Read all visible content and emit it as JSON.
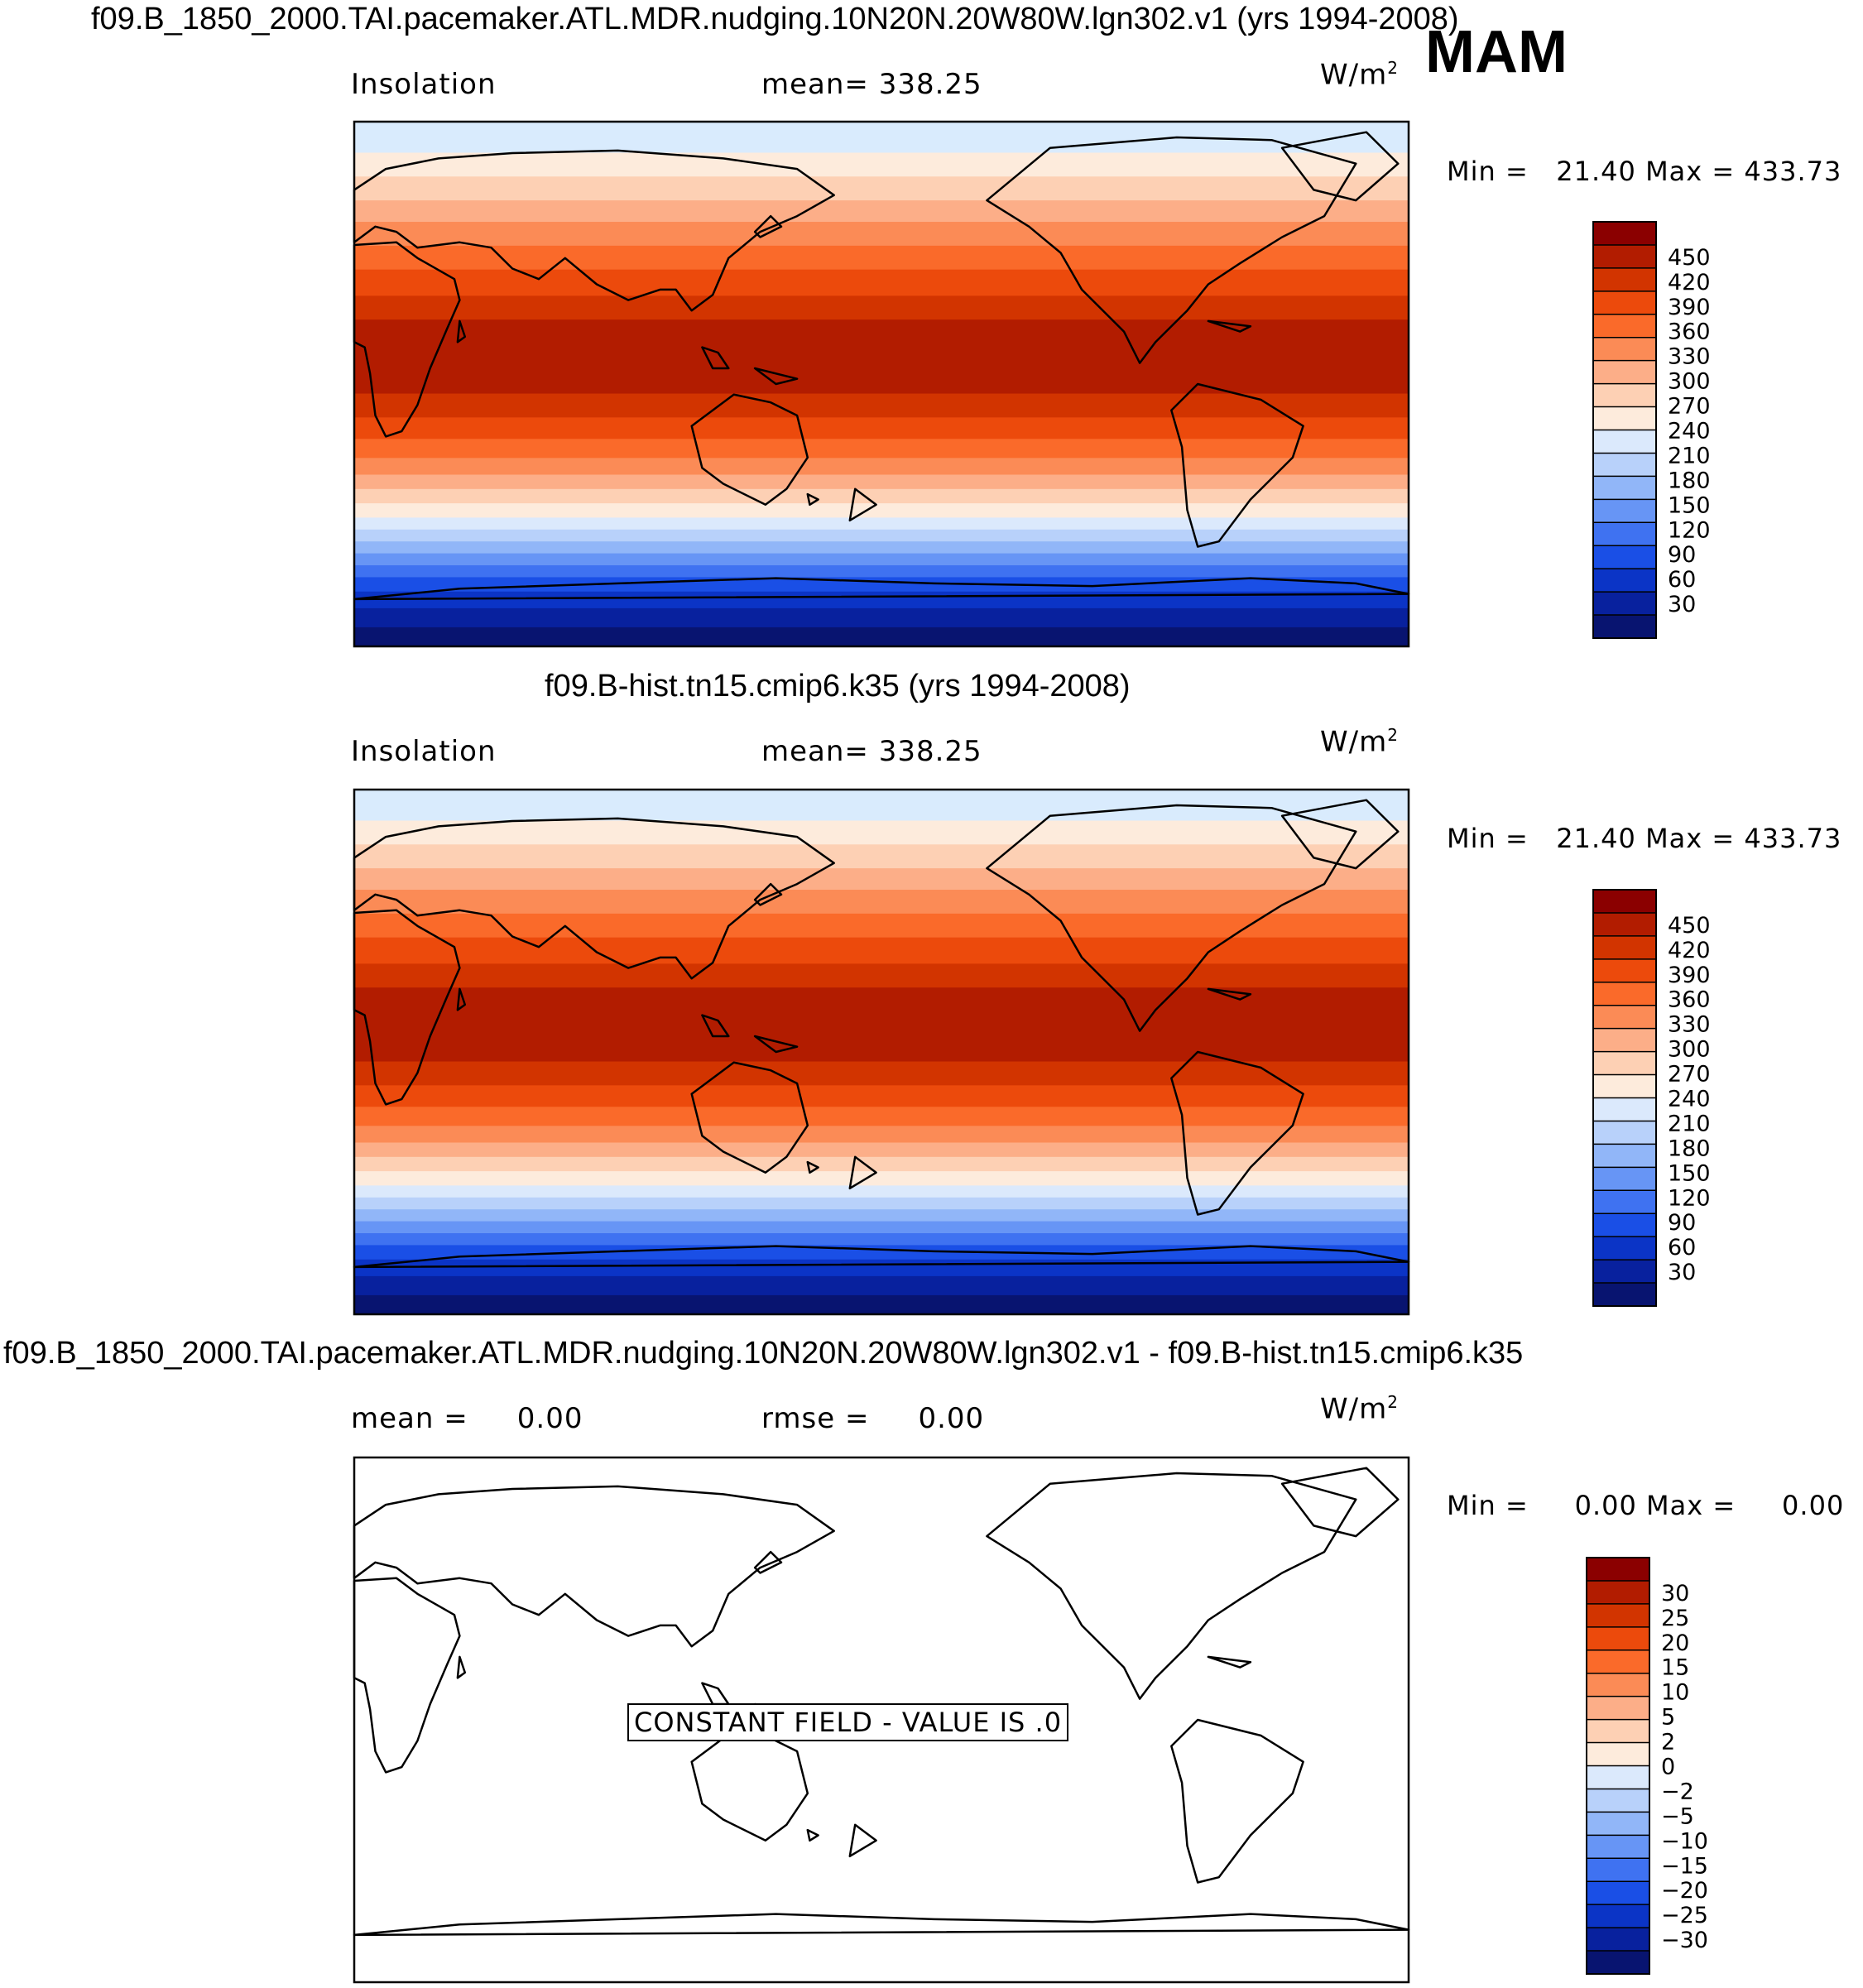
{
  "season": "MAM",
  "panels": [
    {
      "title": "f09.B_1850_2000.TAI.pacemaker.ATL.MDR.nudging.10N20N.20W80W.lgn302.v1 (yrs 1994-2008)",
      "left_label": "Insolation",
      "center_label": "mean= 338.25",
      "units": "W/m",
      "units_sup": "2",
      "min_label": "Min =",
      "min_value": "21.40",
      "max_label": "Max =",
      "max_value": "433.73",
      "colorbar": {
        "ticks": [
          "450",
          "420",
          "390",
          "360",
          "330",
          "300",
          "270",
          "240",
          "210",
          "180",
          "150",
          "120",
          "90",
          "60",
          "30"
        ],
        "colors_top_to_bottom": [
          "#8b0000",
          "#b21c00",
          "#d23400",
          "#ec4a0c",
          "#fa6a2a",
          "#fb8b56",
          "#fcae88",
          "#fdd0b4",
          "#fdebdc",
          "#dbe9fc",
          "#b8d1fa",
          "#91b6f8",
          "#6795f5",
          "#3f72f1",
          "#1a4fe6",
          "#0b34c6",
          "#08219e",
          "#081470"
        ]
      },
      "map": {
        "field": "Insolation",
        "band_colors_north_to_south": [
          "#d9ebfd",
          "#fdebdc",
          "#fdd0b4",
          "#fcae88",
          "#fb8b56",
          "#fa6a2a",
          "#ec4a0c",
          "#d23400",
          "#b21c00",
          "#b21c00",
          "#d23400",
          "#ec4a0c",
          "#fa6a2a",
          "#fb8b56",
          "#fcae88",
          "#fdd0b4",
          "#fdebdc",
          "#dbe9fc",
          "#b8d1fa",
          "#91b6f8",
          "#6795f5",
          "#3f72f1",
          "#1a4fe6",
          "#0b34c6",
          "#08219e",
          "#081470"
        ],
        "band_fractions": [
          0.065,
          0.05,
          0.05,
          0.045,
          0.05,
          0.05,
          0.055,
          0.05,
          0.11,
          0.045,
          0.05,
          0.045,
          0.04,
          0.035,
          0.03,
          0.03,
          0.03,
          0.025,
          0.025,
          0.025,
          0.025,
          0.025,
          0.03,
          0.035,
          0.04,
          0.04
        ]
      }
    },
    {
      "title": "f09.B-hist.tn15.cmip6.k35 (yrs 1994-2008)",
      "left_label": "Insolation",
      "center_label": "mean= 338.25",
      "units": "W/m",
      "units_sup": "2",
      "min_label": "Min =",
      "min_value": "21.40",
      "max_label": "Max =",
      "max_value": "433.73",
      "colorbar": {
        "ticks": [
          "450",
          "420",
          "390",
          "360",
          "330",
          "300",
          "270",
          "240",
          "210",
          "180",
          "150",
          "120",
          "90",
          "60",
          "30"
        ],
        "colors_top_to_bottom": [
          "#8b0000",
          "#b21c00",
          "#d23400",
          "#ec4a0c",
          "#fa6a2a",
          "#fb8b56",
          "#fcae88",
          "#fdd0b4",
          "#fdebdc",
          "#dbe9fc",
          "#b8d1fa",
          "#91b6f8",
          "#6795f5",
          "#3f72f1",
          "#1a4fe6",
          "#0b34c6",
          "#08219e",
          "#081470"
        ]
      },
      "map": {
        "field": "Insolation",
        "band_colors_north_to_south": [
          "#d9ebfd",
          "#fdebdc",
          "#fdd0b4",
          "#fcae88",
          "#fb8b56",
          "#fa6a2a",
          "#ec4a0c",
          "#d23400",
          "#b21c00",
          "#b21c00",
          "#d23400",
          "#ec4a0c",
          "#fa6a2a",
          "#fb8b56",
          "#fcae88",
          "#fdd0b4",
          "#fdebdc",
          "#dbe9fc",
          "#b8d1fa",
          "#91b6f8",
          "#6795f5",
          "#3f72f1",
          "#1a4fe6",
          "#0b34c6",
          "#08219e",
          "#081470"
        ],
        "band_fractions": [
          0.065,
          0.05,
          0.05,
          0.045,
          0.05,
          0.05,
          0.055,
          0.05,
          0.11,
          0.045,
          0.05,
          0.045,
          0.04,
          0.035,
          0.03,
          0.03,
          0.03,
          0.025,
          0.025,
          0.025,
          0.025,
          0.025,
          0.03,
          0.035,
          0.04,
          0.04
        ]
      }
    },
    {
      "title": "f09.B_1850_2000.TAI.pacemaker.ATL.MDR.nudging.10N20N.20W80W.lgn302.v1 - f09.B-hist.tn15.cmip6.k35",
      "left_label": "mean =     0.00",
      "center_label": "rmse =     0.00",
      "units": "W/m",
      "units_sup": "2",
      "min_label": "Min =",
      "min_value": "0.00",
      "max_label": "Max =",
      "max_value": "0.00",
      "constant_field": "CONSTANT FIELD - VALUE IS .0",
      "colorbar": {
        "ticks": [
          "30",
          "25",
          "20",
          "15",
          "10",
          "5",
          "2",
          "0",
          "−2",
          "−5",
          "−10",
          "−15",
          "−20",
          "−25",
          "−30"
        ],
        "colors_top_to_bottom": [
          "#8b0000",
          "#b21c00",
          "#d23400",
          "#ec4a0c",
          "#fa6a2a",
          "#fb8b56",
          "#fcae88",
          "#fdd0b4",
          "#fdebdc",
          "#dbe9fc",
          "#b8d1fa",
          "#91b6f8",
          "#6795f5",
          "#3f72f1",
          "#1a4fe6",
          "#0b34c6",
          "#08219e",
          "#081470"
        ]
      },
      "map": {
        "field": "difference",
        "band_colors_north_to_south": [
          "#ffffff"
        ],
        "band_fractions": [
          1
        ]
      }
    }
  ]
}
